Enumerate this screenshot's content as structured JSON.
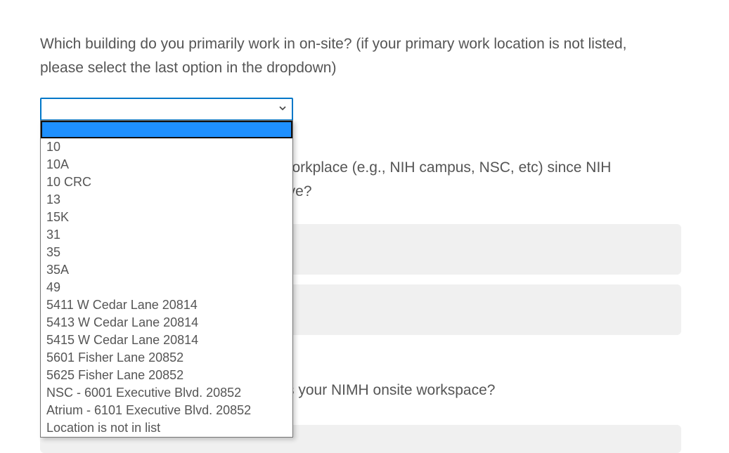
{
  "question1": {
    "text": "Which building do you primarily work in on-site? (if your primary work location is not listed, please select the last option in the dropdown)",
    "select_value": "",
    "options": [
      "",
      "10",
      "10A",
      "10 CRC",
      "13",
      "15K",
      "31",
      "35",
      "35A",
      "49",
      "5411 W Cedar Lane 20814",
      "5413 W Cedar Lane 20814",
      "5415 W Cedar Lane 20814",
      "5601 Fisher Lane 20852",
      "5625 Fisher Lane 20852",
      "NSC - 6001 Executive Blvd. 20852",
      "Atrium - 6101 Executive Blvd. 20852",
      "Location is not in list"
    ],
    "highlighted_index": 0
  },
  "question2": {
    "fragment_line1": "vorkplace (e.g., NIH campus, NSC, etc) since NIH",
    "fragment_line2": "ive?"
  },
  "question3": {
    "fragment": "s your NIMH onsite workspace?"
  },
  "colors": {
    "focus_border": "#0077c8",
    "highlight": "#1e90ff",
    "answer_box": "#f0f0f0",
    "text": "#555555"
  },
  "icons": {
    "select_arrow": "chevron-down-icon"
  }
}
